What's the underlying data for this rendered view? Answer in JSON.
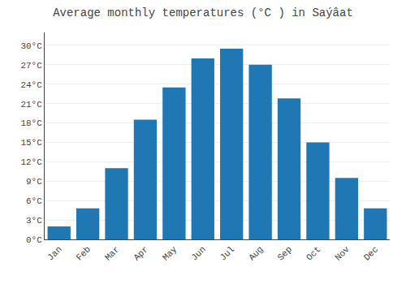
{
  "chart_data": {
    "type": "bar",
    "title": "Average monthly temperatures (°C ) in Saýâat",
    "categories": [
      "Jan",
      "Feb",
      "Mar",
      "Apr",
      "May",
      "Jun",
      "Jul",
      "Aug",
      "Sep",
      "Oct",
      "Nov",
      "Dec"
    ],
    "values": [
      2.0,
      4.8,
      11.0,
      18.5,
      23.5,
      28.0,
      29.5,
      27.0,
      21.8,
      15.0,
      9.5,
      4.8
    ],
    "ylim": [
      0,
      32
    ],
    "yticks": [
      {
        "value": 0,
        "label": "0°C"
      },
      {
        "value": 3,
        "label": "3°C"
      },
      {
        "value": 6,
        "label": "6°C"
      },
      {
        "value": 9,
        "label": "9°C"
      },
      {
        "value": 12,
        "label": "12°C"
      },
      {
        "value": 15,
        "label": "15°C"
      },
      {
        "value": 18,
        "label": "18°C"
      },
      {
        "value": 21,
        "label": "21°C"
      },
      {
        "value": 24,
        "label": "24°C"
      },
      {
        "value": 27,
        "label": "27°C"
      },
      {
        "value": 30,
        "label": "30°C"
      }
    ],
    "grid": true
  }
}
